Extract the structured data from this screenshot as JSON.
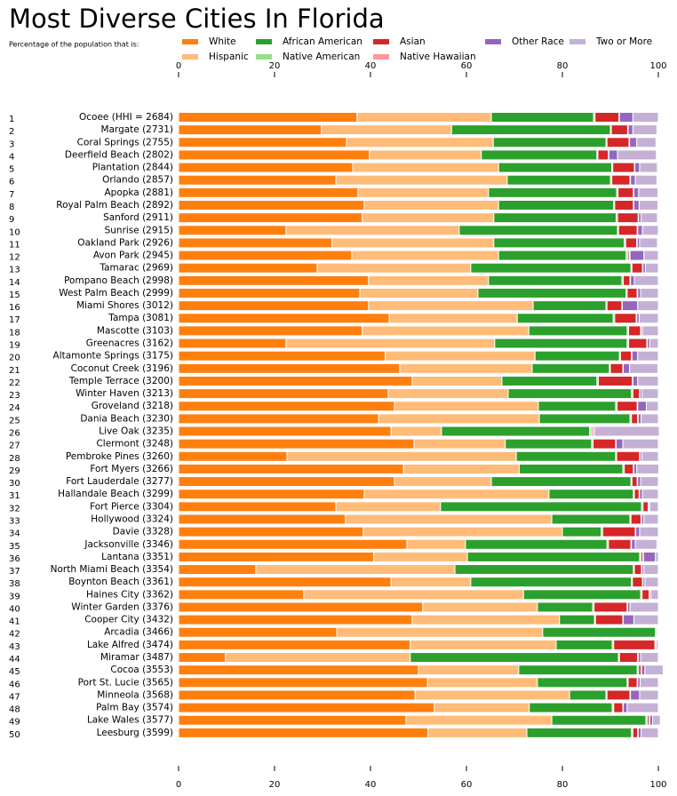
{
  "chart_data": {
    "type": "stacked-bar-horizontal",
    "title": "Most Diverse Cities In Florida",
    "subtitle": "Percentage of the population that is:",
    "ranks": [
      1,
      2,
      3,
      4,
      5,
      6,
      7,
      8,
      9,
      10,
      11,
      12,
      13,
      14,
      15,
      16,
      17,
      18,
      19,
      20,
      21,
      22,
      23,
      24,
      25,
      26,
      27,
      28,
      29,
      30,
      31,
      32,
      33,
      34,
      35,
      36,
      37,
      38,
      39,
      40,
      41,
      42,
      43,
      44,
      45,
      46,
      47,
      48,
      49,
      50
    ],
    "categories": [
      "Ocoee (HHI = 2684)",
      "Margate (2731)",
      "Coral Springs (2755)",
      "Deerfield Beach (2802)",
      "Plantation (2844)",
      "Orlando (2857)",
      "Apopka (2881)",
      "Royal Palm Beach (2892)",
      "Sanford (2911)",
      "Sunrise (2915)",
      "Oakland Park (2926)",
      "Avon Park (2945)",
      "Tamarac (2969)",
      "Pompano Beach (2998)",
      "West Palm Beach (2999)",
      "Miami Shores (3012)",
      "Tampa (3081)",
      "Mascotte (3103)",
      "Greenacres (3162)",
      "Altamonte Springs (3175)",
      "Coconut Creek (3196)",
      "Temple Terrace (3200)",
      "Winter Haven (3213)",
      "Groveland (3218)",
      "Dania Beach (3230)",
      "Live Oak (3235)",
      "Clermont (3248)",
      "Pembroke Pines (3260)",
      "Fort Myers (3266)",
      "Fort Lauderdale (3277)",
      "Hallandale Beach (3299)",
      "Fort Pierce (3304)",
      "Hollywood (3324)",
      "Davie (3328)",
      "Jacksonville (3346)",
      "Lantana (3351)",
      "North Miami Beach (3354)",
      "Boynton Beach (3361)",
      "Haines City (3362)",
      "Winter Garden (3376)",
      "Cooper City (3432)",
      "Arcadia (3466)",
      "Lake Alfred (3474)",
      "Miramar (3487)",
      "Cocoa (3553)",
      "Port St. Lucie (3565)",
      "Minneola (3568)",
      "Palm Bay (3574)",
      "Lake Wales (3577)",
      "Leesburg (3599)"
    ],
    "series": [
      {
        "name": "White",
        "color": "#ff7f0e",
        "values": [
          37.2,
          29.8,
          35,
          39.8,
          36.3,
          32.8,
          37.4,
          38.7,
          38.3,
          22.4,
          32,
          36.1,
          28.9,
          39.6,
          37.8,
          39.6,
          43.9,
          38.3,
          22.4,
          43.1,
          46.1,
          48.7,
          43.7,
          45,
          41.7,
          44.3,
          49.1,
          22.6,
          46.9,
          45,
          38.7,
          32.8,
          34.8,
          38.5,
          47.6,
          40.7,
          16.1,
          44.3,
          26.1,
          50.9,
          48.7,
          33,
          48.3,
          9.8,
          50,
          51.9,
          49.3,
          53.3,
          47.4,
          52
        ]
      },
      {
        "name": "Hispanic",
        "color": "#ffbb78",
        "values": [
          28,
          27.1,
          30.6,
          23.3,
          30.4,
          35.7,
          27.2,
          28,
          27.4,
          36.1,
          33.7,
          30.6,
          32,
          25,
          24.6,
          34.3,
          26.7,
          34.7,
          43.5,
          31.2,
          27.6,
          18.7,
          25,
          30,
          33.5,
          10.5,
          19,
          47.8,
          24.1,
          20.2,
          38.5,
          21.8,
          43,
          41.5,
          12.2,
          19.5,
          41.5,
          16.6,
          45.8,
          23.9,
          30.7,
          42.9,
          30.4,
          38.5,
          20.9,
          22.9,
          32.2,
          19.8,
          30.4,
          20.6
        ]
      },
      {
        "name": "African American",
        "color": "#2ca02c",
        "values": [
          21.3,
          33.1,
          23.5,
          24.1,
          23.6,
          21.5,
          26.7,
          24,
          25.5,
          33,
          27.2,
          26.6,
          33.4,
          27.8,
          30.9,
          15.2,
          20,
          20.5,
          27.6,
          17.6,
          16.1,
          19.8,
          25.7,
          16.1,
          18.9,
          30.9,
          18,
          20.7,
          21.6,
          29.1,
          17.6,
          41.9,
          16.3,
          8.1,
          29.5,
          35.9,
          37.2,
          33.5,
          24.4,
          11.5,
          7.3,
          23.5,
          11.7,
          43.4,
          24.7,
          18.7,
          7.6,
          17.3,
          19.6,
          21.8
        ]
      },
      {
        "name": "Native American",
        "color": "#98df8a",
        "values": [
          0.3,
          0.2,
          0.2,
          0.2,
          0.2,
          0.3,
          0.3,
          0.2,
          0.3,
          0.2,
          0.3,
          0.4,
          0.2,
          0.3,
          0.2,
          0.2,
          0.3,
          0.3,
          0.3,
          0.2,
          0.2,
          0.3,
          0.3,
          0.3,
          0.3,
          0.3,
          0.3,
          0.2,
          0.3,
          0.2,
          0.2,
          0.3,
          0.2,
          0.3,
          0.3,
          0.3,
          0.2,
          0.2,
          0.3,
          0.3,
          0.2,
          0.2,
          0.3,
          0.2,
          0.3,
          0.2,
          0.2,
          0.3,
          0.3,
          0.3
        ]
      },
      {
        "name": "Asian",
        "color": "#d62728",
        "values": [
          5,
          3.4,
          4.6,
          2.2,
          4.5,
          3.8,
          3.2,
          3.9,
          4.3,
          3.9,
          2.3,
          0.3,
          2.2,
          1.4,
          2.1,
          3.1,
          4.5,
          2.5,
          3.8,
          2.3,
          2.6,
          7.1,
          1.4,
          4.2,
          1.3,
          0.3,
          4.7,
          4.8,
          1.9,
          1.1,
          1,
          1.1,
          2.1,
          6.8,
          4.7,
          0.4,
          1.5,
          2.1,
          1.5,
          6.9,
          5.7,
          0.2,
          8.6,
          3.8,
          0.5,
          1.9,
          4.8,
          1.9,
          0.4,
          1
        ]
      },
      {
        "name": "Native Hawaiian",
        "color": "#ff9896",
        "values": [
          0.1,
          0.1,
          0.1,
          0.1,
          0.1,
          0.1,
          0.1,
          0.1,
          0.1,
          0.1,
          0.1,
          0.1,
          0.1,
          0.1,
          0.1,
          0.1,
          0.1,
          0.1,
          0.1,
          0.1,
          0.1,
          0.1,
          0.1,
          0.1,
          0.1,
          0.1,
          0.1,
          0.1,
          0.1,
          0.1,
          0.1,
          0.1,
          0.1,
          0.1,
          0.1,
          0.1,
          0.1,
          0.1,
          0.1,
          0.1,
          0.1,
          0,
          0.1,
          0.1,
          0.1,
          0.1,
          0.1,
          0.1,
          0.1,
          0.1
        ]
      },
      {
        "name": "Other Race",
        "color": "#9467bd",
        "values": [
          2.8,
          1,
          1.5,
          1.8,
          1,
          1,
          1,
          1.1,
          0.5,
          1,
          0.5,
          2.9,
          0.5,
          0.8,
          0.6,
          3.2,
          0.5,
          0.3,
          0.5,
          1.2,
          1.3,
          1,
          0.4,
          1.8,
          0.6,
          0.3,
          1.4,
          0.4,
          0.6,
          0.6,
          0.6,
          0.2,
          0.5,
          0.8,
          0.8,
          2.5,
          0.4,
          0.4,
          0.3,
          0.5,
          2.2,
          0.1,
          0.2,
          0.5,
          0.7,
          0.5,
          1.9,
          0.8,
          0.6,
          0.6
        ]
      },
      {
        "name": "Two or More",
        "color": "#c5b0d5",
        "values": [
          5.3,
          5,
          4,
          8.1,
          3.7,
          4.5,
          4,
          3.9,
          3.4,
          3.3,
          3.7,
          3,
          2.7,
          5,
          3.7,
          4.3,
          4,
          3.3,
          1.8,
          4.3,
          5.9,
          4.3,
          3.4,
          2.5,
          3.6,
          13.5,
          7.4,
          3.4,
          4.6,
          3.7,
          3.3,
          1.8,
          3,
          3.9,
          4.5,
          0.6,
          3,
          2.8,
          1.5,
          5.9,
          5.1,
          0.1,
          0.4,
          3.7,
          3.8,
          3.8,
          3.9,
          6.5,
          1.6,
          3.6
        ]
      }
    ],
    "xlim": [
      0,
      100
    ],
    "xticks": [
      0,
      20,
      40,
      60,
      80,
      100
    ]
  }
}
